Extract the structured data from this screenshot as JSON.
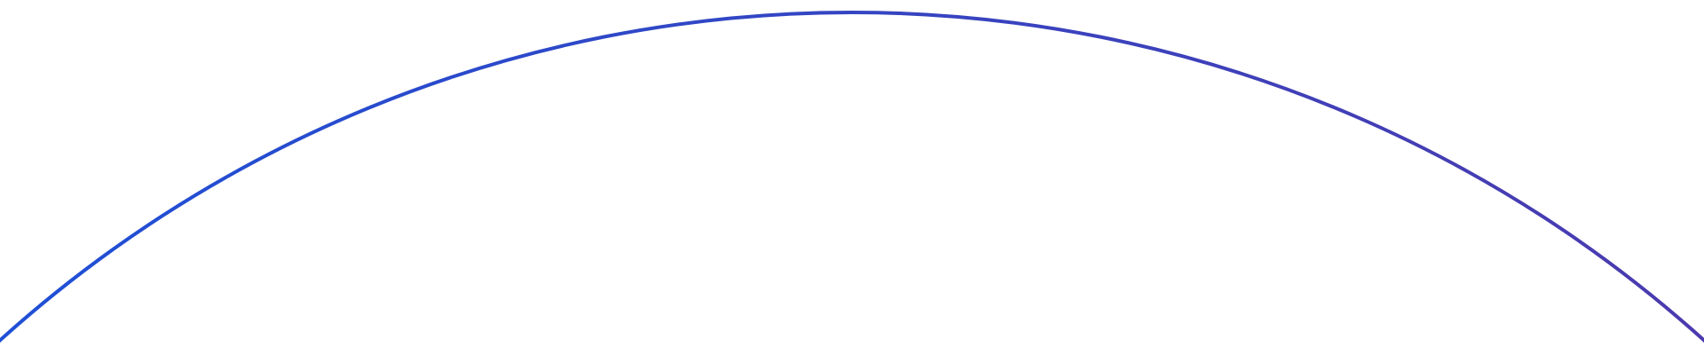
{
  "colors": {
    "background": "#ffffff",
    "arc_start": "#1e50d6",
    "arc_end": "#4b3aae"
  }
}
